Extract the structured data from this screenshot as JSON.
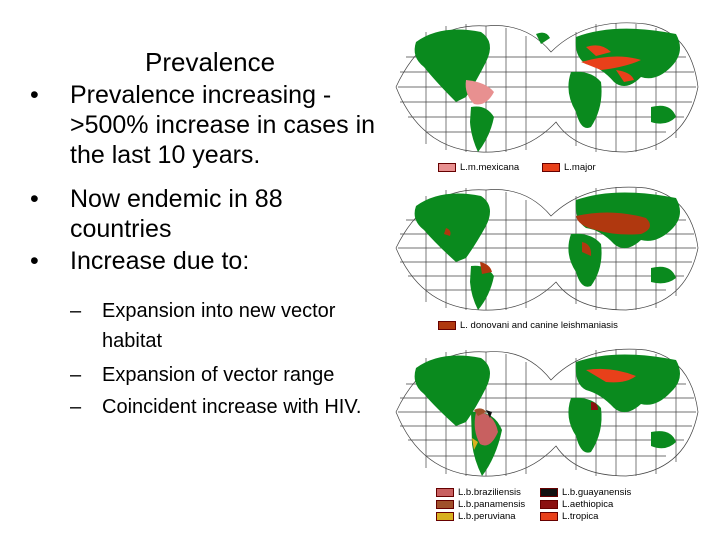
{
  "slide": {
    "title": "Prevalence",
    "bullets": [
      {
        "marker": "•",
        "text": "Prevalence increasing - >500% increase in cases in the last 10 years."
      },
      {
        "marker": "•",
        "text": "Now endemic in 88 countries"
      },
      {
        "marker": "•",
        "text": "Increase due to:"
      }
    ],
    "sub_bullets": [
      {
        "marker": "–",
        "text": "Expansion into new vector habitat"
      },
      {
        "marker": "–",
        "text": "Expansion of vector range"
      },
      {
        "marker": "–",
        "text": "Coincident increase with HIV."
      }
    ]
  },
  "maps": [
    {
      "legend": [
        {
          "label": "L.m.mexicana",
          "color": "#e89090"
        },
        {
          "label": "L.major",
          "color": "#e8401a"
        }
      ]
    },
    {
      "legend": [
        {
          "label": "L. donovani and canine leishmaniasis",
          "color": "#b0380f"
        }
      ]
    },
    {
      "legend": [
        {
          "label": "L.b.braziliensis",
          "color": "#c86060"
        },
        {
          "label": "L.b.guayanensis",
          "color": "#111111"
        },
        {
          "label": "L.b.panamensis",
          "color": "#a0502a"
        },
        {
          "label": "L.aethiopica",
          "color": "#8b1010"
        },
        {
          "label": "L.b.peruviana",
          "color": "#d8b020"
        },
        {
          "label": "L.tropica",
          "color": "#e8401a"
        }
      ]
    }
  ],
  "colors": {
    "land": "#0a8a1e",
    "grid": "#444444",
    "text": "#000000"
  }
}
